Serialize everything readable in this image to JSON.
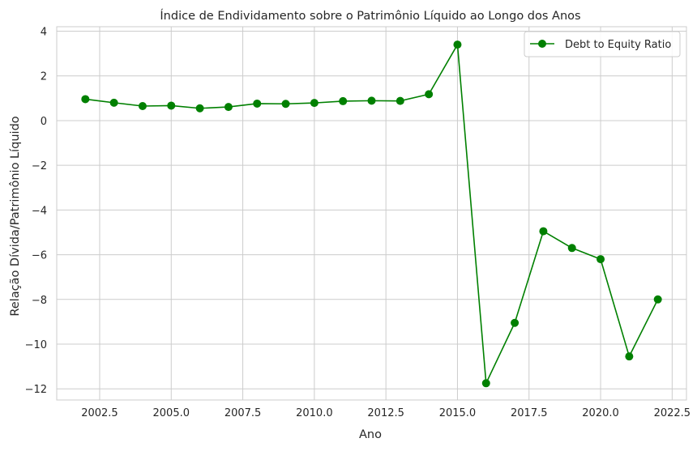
{
  "chart_data": {
    "type": "line",
    "title": "Índice de Endividamento sobre o Patrimônio Líquido ao Longo dos Anos",
    "xlabel": "Ano",
    "ylabel": "Relação Dívida/Patrimônio Líquido",
    "xlim": [
      2001.0,
      2023.0
    ],
    "ylim": [
      -12.5,
      4.2
    ],
    "xticks": [
      2002.5,
      2005.0,
      2007.5,
      2010.0,
      2012.5,
      2015.0,
      2017.5,
      2020.0,
      2022.5
    ],
    "xtick_labels": [
      "2002.5",
      "2005.0",
      "2007.5",
      "2010.0",
      "2012.5",
      "2015.0",
      "2017.5",
      "2020.0",
      "2022.5"
    ],
    "yticks": [
      4,
      2,
      0,
      -2,
      -4,
      -6,
      -8,
      -10,
      -12
    ],
    "ytick_labels": [
      "4",
      "2",
      "0",
      "−2",
      "−4",
      "−6",
      "−8",
      "−10",
      "−12"
    ],
    "grid": true,
    "legend": "top-right",
    "series": [
      {
        "name": "Debt to Equity Ratio",
        "color": "#008000",
        "marker": "circle",
        "x": [
          2002,
          2003,
          2004,
          2005,
          2006,
          2007,
          2008,
          2009,
          2010,
          2011,
          2012,
          2013,
          2014,
          2015,
          2016,
          2017,
          2018,
          2019,
          2020,
          2021,
          2022
        ],
        "y": [
          0.96,
          0.8,
          0.65,
          0.67,
          0.55,
          0.61,
          0.76,
          0.75,
          0.79,
          0.87,
          0.89,
          0.88,
          1.18,
          3.4,
          -11.75,
          -9.05,
          -4.95,
          -5.7,
          -6.2,
          -10.55,
          -8.0
        ]
      }
    ]
  }
}
